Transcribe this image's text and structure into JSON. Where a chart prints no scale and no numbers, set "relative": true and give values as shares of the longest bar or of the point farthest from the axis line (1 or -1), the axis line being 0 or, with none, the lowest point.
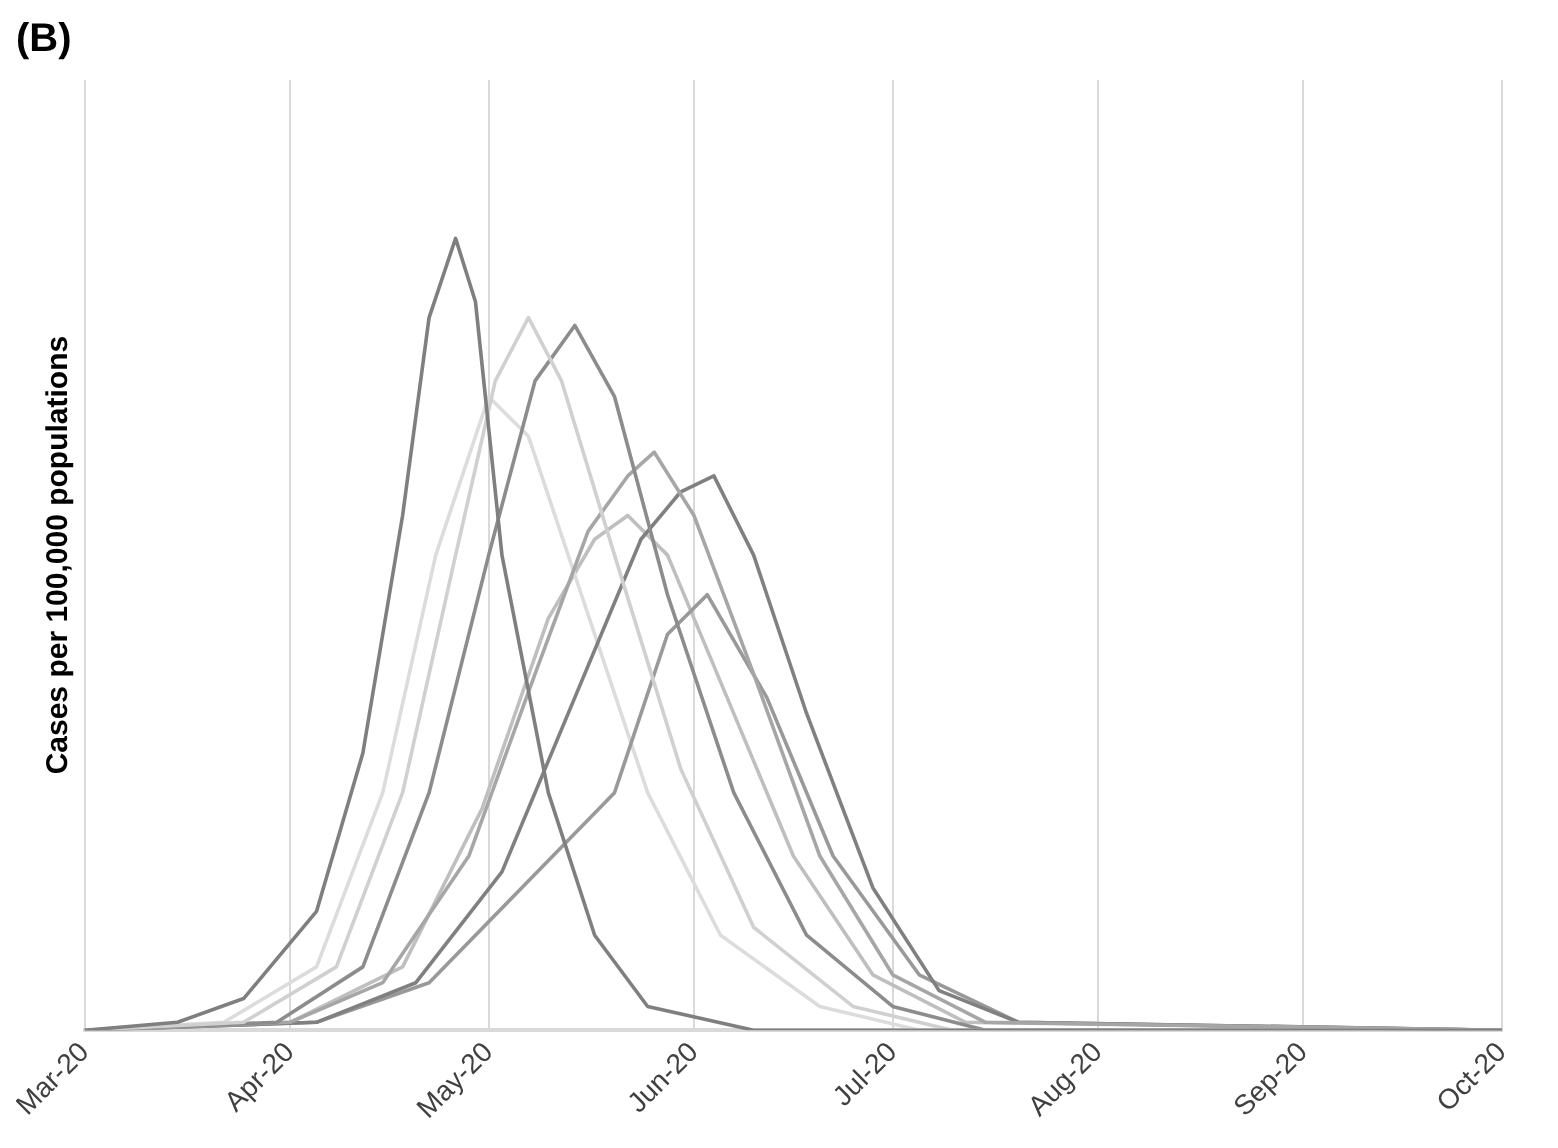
{
  "chart_data": {
    "type": "line",
    "title": "(B)",
    "ylabel": "Cases per 100,000 populations",
    "relative": true,
    "grid": "x",
    "legend": false,
    "marker": "none",
    "line_style": "solid",
    "xlim": [
      "2020-03-01",
      "2020-10-01"
    ],
    "xticks": [
      {
        "value": "2020-03-01",
        "label": "Mar-20"
      },
      {
        "value": "2020-04-01",
        "label": "Apr-20"
      },
      {
        "value": "2020-05-01",
        "label": "May-20"
      },
      {
        "value": "2020-06-01",
        "label": "Jun-20"
      },
      {
        "value": "2020-07-01",
        "label": "Jul-20"
      },
      {
        "value": "2020-08-01",
        "label": "Aug-20"
      },
      {
        "value": "2020-09-01",
        "label": "Sep-20"
      },
      {
        "value": "2020-10-01",
        "label": "Oct-20"
      }
    ],
    "series": [
      {
        "color": "#7f7f7f",
        "x": [
          "2020-03-01",
          "2020-03-15",
          "2020-03-25",
          "2020-04-05",
          "2020-04-12",
          "2020-04-18",
          "2020-04-22",
          "2020-04-26",
          "2020-04-29",
          "2020-05-03",
          "2020-05-10",
          "2020-05-17",
          "2020-05-25",
          "2020-06-10",
          "2020-10-01"
        ],
        "values": [
          0,
          0.01,
          0.04,
          0.15,
          0.35,
          0.65,
          0.9,
          1.0,
          0.92,
          0.6,
          0.3,
          0.12,
          0.03,
          0,
          0
        ]
      },
      {
        "color": "#d0d0d0",
        "x": [
          "2020-03-01",
          "2020-03-25",
          "2020-04-08",
          "2020-04-18",
          "2020-04-26",
          "2020-05-02",
          "2020-05-07",
          "2020-05-12",
          "2020-05-20",
          "2020-05-30",
          "2020-06-10",
          "2020-06-25",
          "2020-07-10",
          "2020-10-01"
        ],
        "values": [
          0,
          0.01,
          0.08,
          0.3,
          0.6,
          0.82,
          0.9,
          0.82,
          0.6,
          0.33,
          0.13,
          0.03,
          0,
          0
        ]
      },
      {
        "color": "#8c8c8c",
        "x": [
          "2020-03-01",
          "2020-03-30",
          "2020-04-12",
          "2020-04-22",
          "2020-05-01",
          "2020-05-08",
          "2020-05-14",
          "2020-05-20",
          "2020-05-28",
          "2020-06-07",
          "2020-06-18",
          "2020-07-01",
          "2020-07-15",
          "2020-10-01"
        ],
        "values": [
          0,
          0.01,
          0.08,
          0.3,
          0.6,
          0.82,
          0.89,
          0.8,
          0.55,
          0.3,
          0.12,
          0.03,
          0,
          0
        ]
      },
      {
        "color": "#a6a6a6",
        "x": [
          "2020-03-01",
          "2020-04-01",
          "2020-04-15",
          "2020-04-28",
          "2020-05-08",
          "2020-05-16",
          "2020-05-22",
          "2020-05-26",
          "2020-06-01",
          "2020-06-10",
          "2020-06-20",
          "2020-07-01",
          "2020-07-15",
          "2020-10-01"
        ],
        "values": [
          0,
          0.01,
          0.06,
          0.22,
          0.45,
          0.63,
          0.7,
          0.73,
          0.65,
          0.45,
          0.22,
          0.07,
          0.01,
          0
        ]
      },
      {
        "color": "#808080",
        "x": [
          "2020-03-01",
          "2020-04-05",
          "2020-04-20",
          "2020-05-03",
          "2020-05-14",
          "2020-05-24",
          "2020-05-30",
          "2020-06-04",
          "2020-06-10",
          "2020-06-18",
          "2020-06-28",
          "2020-07-08",
          "2020-07-20",
          "2020-10-01"
        ],
        "values": [
          0,
          0.01,
          0.06,
          0.2,
          0.42,
          0.62,
          0.68,
          0.7,
          0.6,
          0.4,
          0.18,
          0.05,
          0.01,
          0
        ]
      },
      {
        "color": "#999999",
        "x": [
          "2020-03-01",
          "2020-04-05",
          "2020-04-22",
          "2020-05-06",
          "2020-05-13",
          "2020-05-20",
          "2020-05-28",
          "2020-06-03",
          "2020-06-12",
          "2020-06-22",
          "2020-07-05",
          "2020-07-20",
          "2020-10-01"
        ],
        "values": [
          0,
          0.01,
          0.06,
          0.18,
          0.24,
          0.3,
          0.5,
          0.55,
          0.42,
          0.22,
          0.07,
          0.01,
          0
        ]
      },
      {
        "color": "#dcdcdc",
        "x": [
          "2020-03-01",
          "2020-03-22",
          "2020-04-05",
          "2020-04-15",
          "2020-04-23",
          "2020-05-01",
          "2020-05-07",
          "2020-05-15",
          "2020-05-25",
          "2020-06-05",
          "2020-06-20",
          "2020-07-05",
          "2020-10-01"
        ],
        "values": [
          0,
          0.01,
          0.08,
          0.3,
          0.6,
          0.8,
          0.75,
          0.55,
          0.3,
          0.12,
          0.03,
          0,
          0
        ]
      },
      {
        "color": "#bfbfbf",
        "x": [
          "2020-03-01",
          "2020-04-01",
          "2020-04-18",
          "2020-04-30",
          "2020-05-10",
          "2020-05-17",
          "2020-05-22",
          "2020-05-28",
          "2020-06-06",
          "2020-06-16",
          "2020-06-28",
          "2020-07-12",
          "2020-10-01"
        ],
        "values": [
          0,
          0.01,
          0.08,
          0.28,
          0.52,
          0.62,
          0.65,
          0.6,
          0.42,
          0.22,
          0.07,
          0.01,
          0
        ]
      }
    ]
  }
}
